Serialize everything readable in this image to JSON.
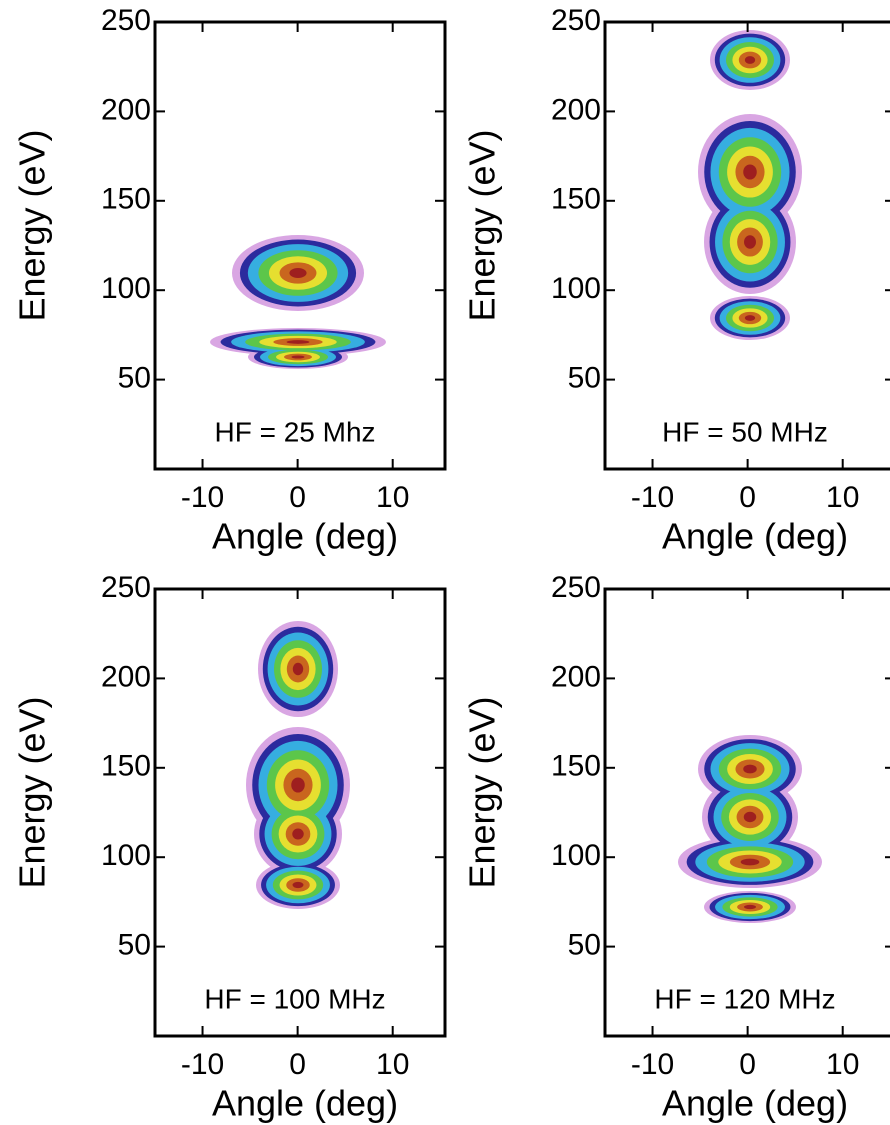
{
  "chart_data": [
    {
      "type": "contour",
      "annotation": "HF = 25 Mhz",
      "xlabel": "Angle (deg)",
      "ylabel": "Energy (eV)",
      "xlim": [
        -15,
        15.5
      ],
      "ylim": [
        0,
        250
      ],
      "xticks": [
        -10,
        0,
        10
      ],
      "yticks": [
        50,
        100,
        150,
        200,
        250
      ]
    },
    {
      "type": "contour",
      "annotation": "HF = 50 MHz",
      "xlabel": "Angle (deg)",
      "ylabel": "Energy (eV)",
      "xlim": [
        -15,
        15.5
      ],
      "ylim": [
        0,
        250
      ],
      "xticks": [
        -10,
        0,
        10
      ],
      "yticks": [
        50,
        100,
        150,
        200,
        250
      ]
    },
    {
      "type": "contour",
      "annotation": "HF = 100 MHz",
      "xlabel": "Angle (deg)",
      "ylabel": "Energy (eV)",
      "xlim": [
        -15,
        15.5
      ],
      "ylim": [
        0,
        250
      ],
      "xticks": [
        -10,
        0,
        10
      ],
      "yticks": [
        50,
        100,
        150,
        200,
        250
      ]
    },
    {
      "type": "contour",
      "annotation": "HF = 120 MHz",
      "xlabel": "Angle (deg)",
      "ylabel": "Energy (eV)",
      "xlim": [
        -15,
        15.5
      ],
      "ylim": [
        0,
        250
      ],
      "xticks": [
        -10,
        0,
        10
      ],
      "yticks": [
        50,
        100,
        150,
        200,
        250
      ]
    }
  ]
}
